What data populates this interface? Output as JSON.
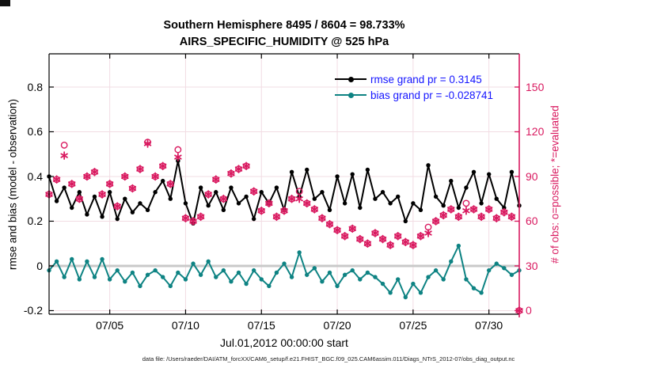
{
  "window": {
    "background": "#ffffff"
  },
  "colors": {
    "foreground": "#000000",
    "rmse_line": "#000000",
    "bias_line": "#0e8383",
    "obs_pink": "#d91a60",
    "legend_text": "#1515ff",
    "grid": "#f2dce3",
    "zero_line": "#c9c9c9",
    "footer_text": "#1a1a1a"
  },
  "footer": {
    "data_file": "data file: /Users/raeder/DAI/ATM_forcXX/CAM6_setup/f.e21.FHIST_BGC.f09_025.CAM6assim.011/Diags_NTrS_2012-07/obs_diag_output.nc"
  },
  "chart_data": {
    "type": "line",
    "title_line1": "Southern Hemisphere 8495 / 8604 = 98.733%",
    "title_line2": "AIRS_SPECIFIC_HUMIDITY @ 525 hPa",
    "xlabel": "Jul.01,2012 00:00:00 start",
    "ylabel_left": "rmse and bias (model - observation)",
    "ylabel_right": "# of obs: o=possible; *=evaluated",
    "x_tick_labels": [
      "07/05",
      "07/10",
      "07/15",
      "07/20",
      "07/25",
      "07/30"
    ],
    "x_tick_days": [
      4,
      9,
      14,
      19,
      24,
      29
    ],
    "x_range_days": [
      0,
      31
    ],
    "ylim_left": [
      -0.2161,
      0.9486
    ],
    "yticks_left": [
      -0.2,
      0,
      0.2,
      0.4,
      0.6,
      0.8
    ],
    "ylim_right": [
      -2.4,
      172.3
    ],
    "yticks_right": [
      0,
      30,
      60,
      90,
      120,
      150
    ],
    "grid": true,
    "zero_line": true,
    "legend": {
      "position": "top-right-inside",
      "text_color": "#1515ff",
      "entries": [
        {
          "label": "rmse grand pr = 0.3145",
          "color": "#000000"
        },
        {
          "label": "bias grand pr = -0.028741",
          "color": "#0e8383"
        }
      ]
    },
    "x_days": [
      0,
      0.5,
      1,
      1.5,
      2,
      2.5,
      3,
      3.5,
      4,
      4.5,
      5,
      5.5,
      6,
      6.5,
      7,
      7.5,
      8,
      8.5,
      9,
      9.5,
      10,
      10.5,
      11,
      11.5,
      12,
      12.5,
      13,
      13.5,
      14,
      14.5,
      15,
      15.5,
      16,
      16.5,
      17,
      17.5,
      18,
      18.5,
      19,
      19.5,
      20,
      20.5,
      21,
      21.5,
      22,
      22.5,
      23,
      23.5,
      24,
      24.5,
      25,
      25.5,
      26,
      26.5,
      27,
      27.5,
      28,
      28.5,
      29,
      29.5,
      30,
      30.5,
      31
    ],
    "series": [
      {
        "role": "rmse",
        "name": "rmse",
        "axis": "left",
        "color": "#000000",
        "marker": "circle-filled",
        "values": [
          0.4,
          0.29,
          0.35,
          0.26,
          0.33,
          0.23,
          0.31,
          0.22,
          0.33,
          0.21,
          0.3,
          0.24,
          0.28,
          0.25,
          0.33,
          0.38,
          0.3,
          0.47,
          0.28,
          0.19,
          0.35,
          0.27,
          0.33,
          0.25,
          0.35,
          0.28,
          0.31,
          0.21,
          0.33,
          0.28,
          0.35,
          0.25,
          0.42,
          0.31,
          0.43,
          0.3,
          0.33,
          0.25,
          0.4,
          0.28,
          0.41,
          0.26,
          0.43,
          0.3,
          0.33,
          0.28,
          0.31,
          0.2,
          0.28,
          0.25,
          0.45,
          0.31,
          0.27,
          0.38,
          0.26,
          0.35,
          0.42,
          0.28,
          0.41,
          0.3,
          0.26,
          0.42,
          0.27
        ]
      },
      {
        "role": "bias",
        "name": "bias",
        "axis": "left",
        "color": "#0e8383",
        "marker": "circle-filled",
        "values": [
          -0.02,
          0.02,
          -0.05,
          0.03,
          -0.06,
          0.02,
          -0.05,
          0.03,
          -0.06,
          -0.02,
          -0.07,
          -0.03,
          -0.09,
          -0.04,
          -0.02,
          -0.05,
          -0.09,
          -0.03,
          -0.06,
          0.01,
          -0.04,
          0.02,
          -0.05,
          -0.02,
          -0.07,
          -0.03,
          -0.08,
          -0.02,
          -0.06,
          -0.09,
          -0.03,
          0.01,
          -0.05,
          0.06,
          -0.04,
          -0.01,
          -0.07,
          -0.03,
          -0.09,
          -0.04,
          -0.02,
          -0.06,
          -0.03,
          -0.05,
          -0.08,
          -0.12,
          -0.06,
          -0.14,
          -0.08,
          -0.12,
          -0.05,
          -0.02,
          -0.06,
          0.02,
          0.09,
          -0.06,
          -0.1,
          -0.12,
          -0.02,
          0.01,
          -0.01,
          -0.04,
          -0.02
        ]
      },
      {
        "role": "possible",
        "name": "# of obs possible (o)",
        "axis": "right",
        "color": "#d91a60",
        "marker": "circle-open",
        "values": [
          78,
          88,
          111,
          85,
          75,
          90,
          93,
          78,
          85,
          70,
          90,
          82,
          95,
          113,
          90,
          97,
          85,
          108,
          62,
          60,
          63,
          78,
          88,
          75,
          92,
          95,
          97,
          80,
          67,
          72,
          63,
          67,
          75,
          80,
          72,
          68,
          62,
          58,
          54,
          50,
          55,
          48,
          45,
          52,
          48,
          44,
          50,
          46,
          44,
          50,
          56,
          60,
          64,
          68,
          63,
          72,
          68,
          63,
          68,
          62,
          66,
          63,
          0
        ]
      },
      {
        "role": "evaluated",
        "name": "# of obs evaluated (*)",
        "axis": "right",
        "color": "#d91a60",
        "marker": "asterisk",
        "values": [
          78,
          88,
          104,
          85,
          75,
          90,
          93,
          78,
          85,
          70,
          90,
          82,
          95,
          112,
          90,
          97,
          85,
          103,
          62,
          60,
          63,
          78,
          88,
          75,
          92,
          95,
          97,
          80,
          67,
          72,
          63,
          67,
          75,
          75,
          72,
          68,
          62,
          58,
          54,
          50,
          55,
          48,
          45,
          52,
          48,
          44,
          50,
          46,
          44,
          50,
          52,
          60,
          64,
          68,
          63,
          67,
          68,
          63,
          68,
          62,
          66,
          63,
          0
        ]
      }
    ]
  }
}
